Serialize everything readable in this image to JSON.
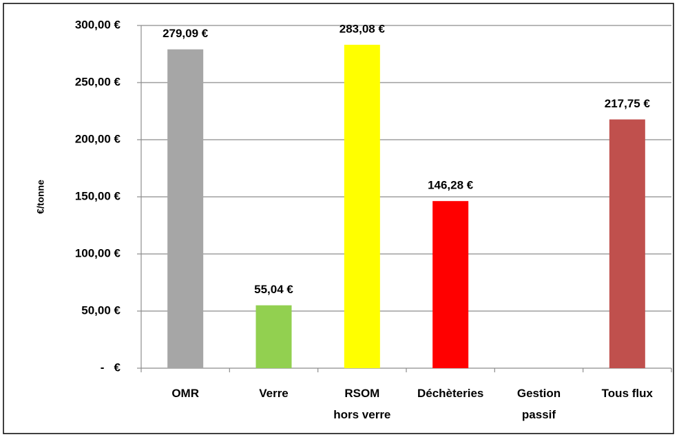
{
  "chart_data": {
    "type": "bar",
    "y_label": "€/tonne",
    "categories": [
      "OMR",
      "Verre",
      "RSOM\nhors verre",
      "Déchèteries",
      "Gestion\npassif",
      "Tous flux"
    ],
    "values": [
      279.09,
      55.04,
      283.08,
      146.28,
      null,
      217.75
    ],
    "value_labels": [
      "279,09 €",
      "55,04 €",
      "283,08 €",
      "146,28 €",
      null,
      "217,75 €"
    ],
    "colors": [
      "#a6a6a6",
      "#92d050",
      "#ffff00",
      "#ff0000",
      null,
      "#c0504d"
    ],
    "ylim": [
      0,
      300
    ],
    "yticks": [
      {
        "value": 0,
        "label": "-   €"
      },
      {
        "value": 50,
        "label": "50,00 €"
      },
      {
        "value": 100,
        "label": "100,00 €"
      },
      {
        "value": 150,
        "label": "150,00 €"
      },
      {
        "value": 200,
        "label": "200,00 €"
      },
      {
        "value": 250,
        "label": "250,00 €"
      },
      {
        "value": 300,
        "label": "300,00 €"
      }
    ],
    "grid": true
  }
}
